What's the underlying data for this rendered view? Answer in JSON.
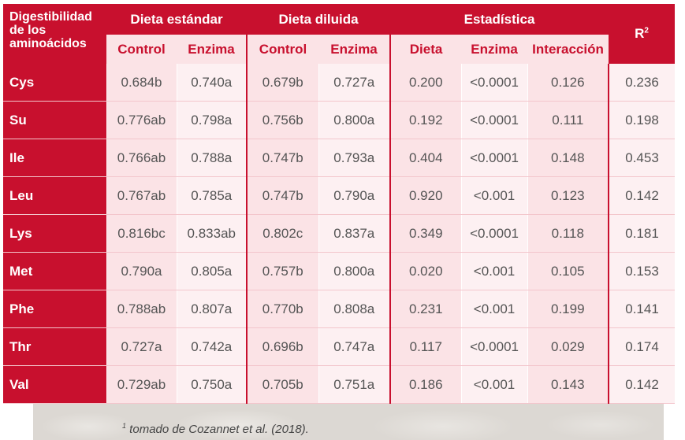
{
  "header": {
    "first_col": "Digestibilidad de los aminoácidos",
    "groups": [
      "Dieta estándar",
      "Dieta diluida",
      "Estadística"
    ],
    "r2_base": "R",
    "r2_sup": "2",
    "subcols": [
      "Control",
      "Enzima",
      "Control",
      "Enzima",
      "Dieta",
      "Enzima",
      "Interacción"
    ]
  },
  "rows": [
    {
      "aa": "Cys",
      "vals": [
        "0.684b",
        "0.740a",
        "0.679b",
        "0.727a",
        "0.200",
        "<0.0001",
        "0.126",
        "0.236"
      ]
    },
    {
      "aa": "Su",
      "vals": [
        "0.776ab",
        "0.798a",
        "0.756b",
        "0.800a",
        "0.192",
        "<0.0001",
        "0.111",
        "0.198"
      ]
    },
    {
      "aa": "Ile",
      "vals": [
        "0.766ab",
        "0.788a",
        "0.747b",
        "0.793a",
        "0.404",
        "<0.0001",
        "0.148",
        "0.453"
      ]
    },
    {
      "aa": "Leu",
      "vals": [
        "0.767ab",
        "0.785a",
        "0.747b",
        "0.790a",
        "0.920",
        "<0.001",
        "0.123",
        "0.142"
      ]
    },
    {
      "aa": "Lys",
      "vals": [
        "0.816bc",
        "0.833ab",
        "0.802c",
        "0.837a",
        "0.349",
        "<0.0001",
        "0.118",
        "0.181"
      ]
    },
    {
      "aa": "Met",
      "vals": [
        "0.790a",
        "0.805a",
        "0.757b",
        "0.800a",
        "0.020",
        "<0.001",
        "0.105",
        "0.153"
      ]
    },
    {
      "aa": "Phe",
      "vals": [
        "0.788ab",
        "0.807a",
        "0.770b",
        "0.808a",
        "0.231",
        "<0.001",
        "0.199",
        "0.141"
      ]
    },
    {
      "aa": "Thr",
      "vals": [
        "0.727a",
        "0.742a",
        "0.696b",
        "0.747a",
        "0.117",
        "<0.0001",
        "0.029",
        "0.174"
      ]
    },
    {
      "aa": "Val",
      "vals": [
        "0.729ab",
        "0.750a",
        "0.705b",
        "0.751a",
        "0.186",
        "<0.001",
        "0.143",
        "0.142"
      ]
    }
  ],
  "footnote": {
    "sup": "1",
    "text": " tomado de Cozannet et al. (2018)."
  }
}
